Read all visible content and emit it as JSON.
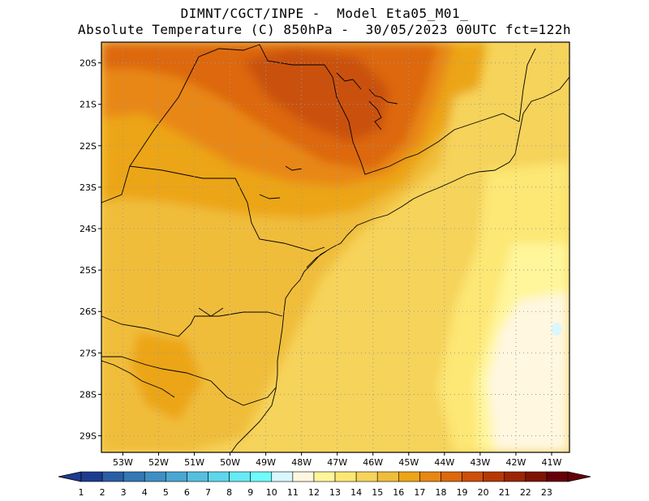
{
  "header": {
    "line1": "DIMNT/CGCT/INPE -  Model Eta05_M01_",
    "line2": "Absolute Temperature (C) 850hPa -  30/05/2023 00UTC fct=122h"
  },
  "map": {
    "lat_labels": [
      "20S",
      "21S",
      "22S",
      "23S",
      "24S",
      "25S",
      "26S",
      "27S",
      "28S",
      "29S"
    ],
    "lon_labels": [
      "53W",
      "52W",
      "51W",
      "50W",
      "49W",
      "48W",
      "47W",
      "46W",
      "45W",
      "44W",
      "43W",
      "42W",
      "41W"
    ],
    "lat_range": [
      -29.4,
      -19.5
    ],
    "lon_range": [
      -53.6,
      -40.5
    ]
  },
  "colorbar": {
    "labels": [
      "1",
      "2",
      "3",
      "4",
      "5",
      "6",
      "7",
      "8",
      "9",
      "10",
      "11",
      "12",
      "13",
      "14",
      "15",
      "16",
      "17",
      "18",
      "19",
      "20",
      "21",
      "22",
      "23"
    ],
    "colors": [
      "#1d3c8e",
      "#2a5fa5",
      "#3478b4",
      "#3f8fc4",
      "#4aa7d3",
      "#55bfe0",
      "#5fd6ec",
      "#66eaf5",
      "#6ffbfd",
      "#d8f7ff",
      "#fff7e0",
      "#fff59a",
      "#fde774",
      "#f6d35a",
      "#f0bd3a",
      "#eca518",
      "#e88712",
      "#dd680e",
      "#cc4f0a",
      "#b53806",
      "#9a2604",
      "#7e1503",
      "#660008"
    ]
  }
}
